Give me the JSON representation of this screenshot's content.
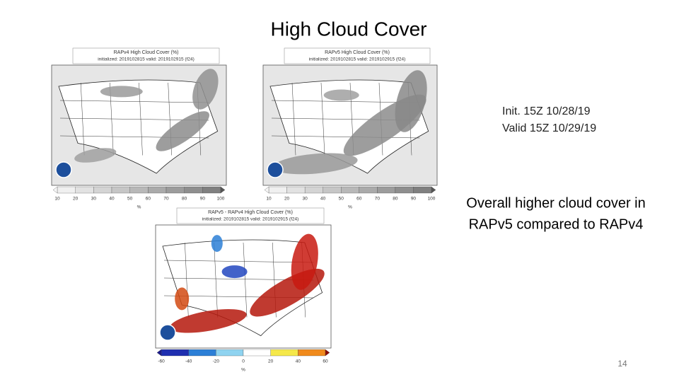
{
  "title": "High Cloud Cover",
  "panels": [
    {
      "title": "RAPv4 High Cloud Cover (%)",
      "subtitle": "initialized: 2019102815 valid: 2019102915 (f24)",
      "colorbar_ticks": [
        10,
        20,
        30,
        40,
        50,
        60,
        70,
        80,
        90,
        100
      ],
      "colorbar_unit": "%"
    },
    {
      "title": "RAPv5 High Cloud Cover (%)",
      "subtitle": "initialized: 2019102815 valid: 2019102915 (f24)",
      "colorbar_ticks": [
        10,
        20,
        30,
        40,
        50,
        60,
        70,
        80,
        90,
        100
      ],
      "colorbar_unit": "%"
    },
    {
      "title": "RAPv5 - RAPv4 High Cloud Cover (%)",
      "subtitle": "initialized: 2019102815 valid: 2019102915 (f24)",
      "colorbar_ticks": [
        -60,
        -40,
        -20,
        0,
        20,
        40,
        60
      ],
      "colorbar_unit": "%"
    }
  ],
  "annotation": {
    "lines": [
      "Init. 15Z 10/28/19",
      "Valid 15Z 10/29/19"
    ]
  },
  "statement": {
    "lines": [
      "Overall higher cloud cover in",
      "RAPv5 compared to RAPv4"
    ]
  },
  "page_number": 14
}
